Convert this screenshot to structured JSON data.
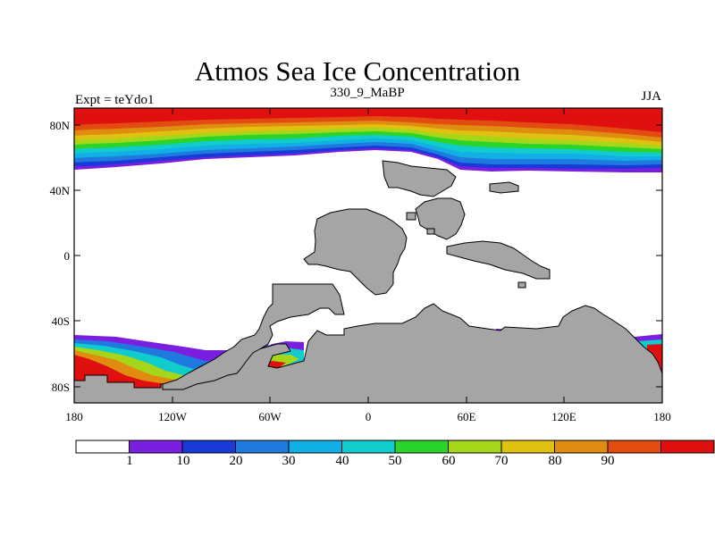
{
  "title": "Atmos Sea Ice Concentration",
  "subtitle": "330_9_MaBP",
  "left_label": "Expt = teYdo1",
  "right_label": "JJA",
  "y_axis_labels": [
    "80N",
    "40N",
    "0",
    "40S",
    "80S"
  ],
  "x_axis_labels": [
    "180",
    "120W",
    "60W",
    "0",
    "60E",
    "120E",
    "180"
  ],
  "colorbar": {
    "labels": [
      "1",
      "10",
      "20",
      "30",
      "40",
      "50",
      "60",
      "70",
      "80",
      "90"
    ],
    "colors": [
      "#ffffff",
      "#7a1fe0",
      "#1a3ad8",
      "#1f7ae0",
      "#12aee6",
      "#10cccc",
      "#2ad42a",
      "#a6d61a",
      "#e0c010",
      "#e08c10",
      "#e24c10",
      "#e01010"
    ]
  },
  "land_color": "#a5a5a5"
}
